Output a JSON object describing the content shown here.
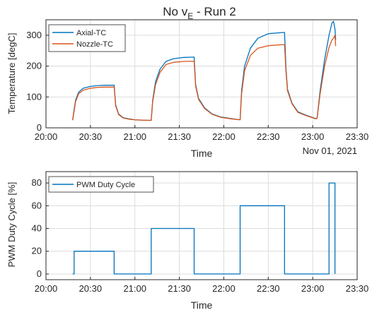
{
  "colors": {
    "axial": "#0072BD",
    "nozzle": "#D95319",
    "pwm": "#0072BD",
    "grid": "#dcdcdc",
    "axes": "#262626"
  },
  "chart_data": [
    {
      "type": "line",
      "title": "No v",
      "title_subscript": "E",
      "title_suffix": " - Run 2",
      "xlabel": "Time",
      "ylabel": "Temperature [degC]",
      "date_label": "Nov 01, 2021",
      "xlim": [
        "20:00",
        "23:30"
      ],
      "ylim": [
        0,
        350
      ],
      "xticks": [
        "20:00",
        "20:30",
        "21:00",
        "21:30",
        "22:00",
        "22:30",
        "23:00",
        "23:30"
      ],
      "yticks": [
        0,
        100,
        200,
        300
      ],
      "grid": true,
      "legend_position": "top-left",
      "series": [
        {
          "name": "Axial-TC",
          "color_key": "axial",
          "x": [
            "20:18",
            "20:19",
            "20:20",
            "20:22",
            "20:25",
            "20:30",
            "20:35",
            "20:40",
            "20:46",
            "20:47",
            "20:49",
            "20:52",
            "20:56",
            "21:00",
            "21:05",
            "21:11",
            "21:12",
            "21:14",
            "21:17",
            "21:21",
            "21:26",
            "21:33",
            "21:40",
            "21:41",
            "21:43",
            "21:47",
            "21:52",
            "21:58",
            "22:05",
            "22:11",
            "22:12",
            "22:14",
            "22:18",
            "22:23",
            "22:30",
            "22:41",
            "22:42",
            "22:43",
            "22:46",
            "22:50",
            "22:56",
            "23:02",
            "23:03",
            "23:05",
            "23:08",
            "23:11",
            "23:13",
            "23:14",
            "23:15",
            "23:15.5"
          ],
          "y": [
            25,
            60,
            90,
            115,
            128,
            134,
            137,
            138,
            138,
            75,
            45,
            33,
            29,
            26,
            25,
            24,
            90,
            150,
            190,
            215,
            224,
            228,
            229,
            140,
            95,
            65,
            45,
            35,
            30,
            26,
            120,
            200,
            258,
            290,
            305,
            309,
            190,
            125,
            80,
            52,
            40,
            30,
            32,
            120,
            220,
            300,
            340,
            345,
            320,
            285
          ]
        },
        {
          "name": "Nozzle-TC",
          "color_key": "nozzle",
          "x": [
            "20:18",
            "20:19",
            "20:20",
            "20:22",
            "20:25",
            "20:30",
            "20:35",
            "20:40",
            "20:46",
            "20:47",
            "20:49",
            "20:52",
            "20:56",
            "21:00",
            "21:05",
            "21:11",
            "21:12",
            "21:14",
            "21:17",
            "21:21",
            "21:26",
            "21:33",
            "21:40",
            "21:41",
            "21:43",
            "21:47",
            "21:52",
            "21:58",
            "22:05",
            "22:11",
            "22:12",
            "22:14",
            "22:18",
            "22:23",
            "22:30",
            "22:41",
            "22:42",
            "22:43",
            "22:46",
            "22:50",
            "22:56",
            "23:02",
            "23:03",
            "23:05",
            "23:08",
            "23:11",
            "23:13",
            "23:14",
            "23:15",
            "23:15.5"
          ],
          "y": [
            25,
            55,
            85,
            110,
            122,
            128,
            131,
            132,
            132,
            72,
            43,
            32,
            28,
            26,
            25,
            24,
            85,
            140,
            180,
            205,
            212,
            215,
            216,
            135,
            92,
            63,
            44,
            34,
            29,
            26,
            110,
            185,
            235,
            258,
            266,
            270,
            180,
            120,
            78,
            50,
            39,
            29,
            31,
            110,
            200,
            260,
            285,
            290,
            300,
            265
          ]
        }
      ]
    },
    {
      "type": "line",
      "title": "",
      "xlabel": "Time",
      "ylabel": "PWM Duty Cycle [%]",
      "xlim": [
        "20:00",
        "23:30"
      ],
      "ylim": [
        -5,
        90
      ],
      "xticks": [
        "20:00",
        "20:30",
        "21:00",
        "21:30",
        "22:00",
        "22:30",
        "23:00",
        "23:30"
      ],
      "yticks": [
        0,
        20,
        40,
        60,
        80
      ],
      "grid": true,
      "legend_position": "top-left",
      "series": [
        {
          "name": "PWM Duty Cycle",
          "color_key": "pwm",
          "x": [
            "20:18",
            "20:19",
            "20:19",
            "20:46",
            "20:46",
            "21:11",
            "21:11",
            "21:40",
            "21:40",
            "22:11",
            "22:11",
            "22:41",
            "22:41",
            "23:02",
            "23:02",
            "23:11",
            "23:11",
            "23:15",
            "23:15"
          ],
          "y": [
            0,
            0,
            20,
            20,
            0,
            0,
            40,
            40,
            0,
            0,
            60,
            60,
            0,
            0,
            0,
            0,
            80,
            80,
            0
          ]
        }
      ]
    }
  ]
}
